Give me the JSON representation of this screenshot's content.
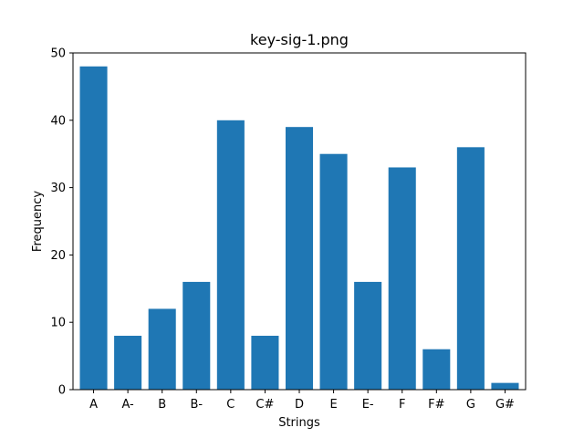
{
  "chart_data": {
    "type": "bar",
    "title": "key-sig-1.png",
    "xlabel": "Strings",
    "ylabel": "Frequency",
    "categories": [
      "A",
      "A-",
      "B",
      "B-",
      "C",
      "C#",
      "D",
      "E",
      "E-",
      "F",
      "F#",
      "G",
      "G#"
    ],
    "values": [
      48,
      8,
      12,
      16,
      40,
      8,
      39,
      35,
      16,
      33,
      6,
      36,
      1
    ],
    "ylim": [
      0,
      50
    ],
    "yticks": [
      0,
      10,
      20,
      30,
      40,
      50
    ],
    "grid": false,
    "legend": "none",
    "bar_color": "#1f77b4"
  }
}
